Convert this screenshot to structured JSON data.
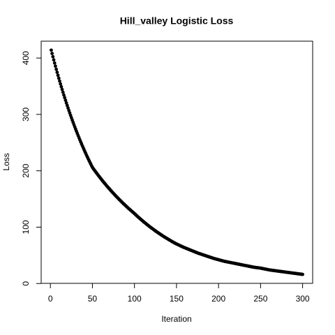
{
  "chart_data": {
    "type": "scatter",
    "title": "Hill_valley Logistic Loss",
    "x_label": "Iteration",
    "y_label": "Loss",
    "color": "#000000",
    "x": [
      1,
      2,
      3,
      4,
      5,
      6,
      7,
      8,
      9,
      10,
      11,
      12,
      13,
      14,
      15,
      16,
      17,
      18,
      19,
      20,
      21,
      22,
      23,
      24,
      25,
      26,
      27,
      28,
      29,
      30,
      31,
      32,
      33,
      34,
      35,
      36,
      37,
      38,
      39,
      40,
      41,
      42,
      43,
      44,
      45,
      46,
      47,
      48,
      49,
      50,
      51,
      52,
      53,
      54,
      55,
      56,
      57,
      58,
      59,
      60,
      61,
      62,
      63,
      64,
      65,
      66,
      67,
      68,
      69,
      70,
      71,
      72,
      73,
      74,
      75,
      76,
      77,
      78,
      79,
      80,
      81,
      82,
      83,
      84,
      85,
      86,
      87,
      88,
      89,
      90,
      91,
      92,
      93,
      94,
      95,
      96,
      97,
      98,
      99,
      100,
      101,
      102,
      103,
      104,
      105,
      106,
      107,
      108,
      109,
      110,
      111,
      112,
      113,
      114,
      115,
      116,
      117,
      118,
      119,
      120,
      121,
      122,
      123,
      124,
      125,
      126,
      127,
      128,
      129,
      130,
      131,
      132,
      133,
      134,
      135,
      136,
      137,
      138,
      139,
      140,
      141,
      142,
      143,
      144,
      145,
      146,
      147,
      148,
      149,
      150,
      151,
      152,
      153,
      154,
      155,
      156,
      157,
      158,
      159,
      160,
      161,
      162,
      163,
      164,
      165,
      166,
      167,
      168,
      169,
      170,
      171,
      172,
      173,
      174,
      175,
      176,
      177,
      178,
      179,
      180,
      181,
      182,
      183,
      184,
      185,
      186,
      187,
      188,
      189,
      190,
      191,
      192,
      193,
      194,
      195,
      196,
      197,
      198,
      199,
      200,
      201,
      202,
      203,
      204,
      205,
      206,
      207,
      208,
      209,
      210,
      211,
      212,
      213,
      214,
      215,
      216,
      217,
      218,
      219,
      220,
      221,
      222,
      223,
      224,
      225,
      226,
      227,
      228,
      229,
      230,
      231,
      232,
      233,
      234,
      235,
      236,
      237,
      238,
      239,
      240,
      241,
      242,
      243,
      244,
      245,
      246,
      247,
      248,
      249,
      250,
      251,
      252,
      253,
      254,
      255,
      256,
      257,
      258,
      259,
      260,
      261,
      262,
      263,
      264,
      265,
      266,
      267,
      268,
      269,
      270,
      271,
      272,
      273,
      274,
      275,
      276,
      277,
      278,
      279,
      280,
      281,
      282,
      283,
      284,
      285,
      286,
      287,
      288,
      289,
      290,
      291,
      292,
      293,
      294,
      295,
      296,
      297,
      298,
      299,
      300
    ],
    "values": [
      414.0,
      408.1,
      402.4,
      396.7,
      391.1,
      385.6,
      380.1,
      374.7,
      369.4,
      364.2,
      359.1,
      354.0,
      349.0,
      344.1,
      339.2,
      334.4,
      329.7,
      325.0,
      320.4,
      315.9,
      311.4,
      307.0,
      302.7,
      298.4,
      294.2,
      290.0,
      285.9,
      281.9,
      277.9,
      274.0,
      270.1,
      266.3,
      262.5,
      258.8,
      255.1,
      251.5,
      247.9,
      244.4,
      241.0,
      237.6,
      234.2,
      230.9,
      227.6,
      224.4,
      221.2,
      218.1,
      215.0,
      212.0,
      209.0,
      206.0,
      203.9,
      201.8,
      199.8,
      197.8,
      195.8,
      193.8,
      191.8,
      189.9,
      188.0,
      186.1,
      184.2,
      182.3,
      180.5,
      178.7,
      176.9,
      175.1,
      173.3,
      171.6,
      169.9,
      168.2,
      166.5,
      164.8,
      163.1,
      161.5,
      159.9,
      158.3,
      156.7,
      155.1,
      153.5,
      152.0,
      150.5,
      149.0,
      147.5,
      146.0,
      144.5,
      143.0,
      141.6,
      140.2,
      138.8,
      137.4,
      136.0,
      134.6,
      133.2,
      131.9,
      130.6,
      129.3,
      128.0,
      126.7,
      125.4,
      124.1,
      122.7,
      121.3,
      119.9,
      118.5,
      117.2,
      115.9,
      114.6,
      113.3,
      112.0,
      110.7,
      109.4,
      108.2,
      107.0,
      105.8,
      104.6,
      103.4,
      102.2,
      101.0,
      99.9,
      98.8,
      97.7,
      96.6,
      95.5,
      94.4,
      93.3,
      92.2,
      91.2,
      90.2,
      89.2,
      88.2,
      87.2,
      86.2,
      85.2,
      84.2,
      83.2,
      82.3,
      81.4,
      80.5,
      79.6,
      78.7,
      77.8,
      76.9,
      76.0,
      75.1,
      74.2,
      73.4,
      72.6,
      71.8,
      71.0,
      70.2,
      69.5,
      68.8,
      68.1,
      67.4,
      66.7,
      66.0,
      65.3,
      64.6,
      63.9,
      63.3,
      62.7,
      62.1,
      61.5,
      60.9,
      60.3,
      59.7,
      59.1,
      58.5,
      57.9,
      57.3,
      56.7,
      56.1,
      55.5,
      54.9,
      54.3,
      53.7,
      53.2,
      52.7,
      52.2,
      51.7,
      51.2,
      50.7,
      50.2,
      49.7,
      49.2,
      48.7,
      48.2,
      47.7,
      47.2,
      46.7,
      46.2,
      45.7,
      45.2,
      44.7,
      44.2,
      43.8,
      43.4,
      43.0,
      42.6,
      42.2,
      41.8,
      41.4,
      41.0,
      40.6,
      40.2,
      39.8,
      39.4,
      39.1,
      38.8,
      38.5,
      38.2,
      37.9,
      37.6,
      37.3,
      37.0,
      36.7,
      36.4,
      36.1,
      35.8,
      35.5,
      35.2,
      34.9,
      34.6,
      34.3,
      34.0,
      33.7,
      33.4,
      33.1,
      32.8,
      32.5,
      32.2,
      31.9,
      31.6,
      31.3,
      31.0,
      30.7,
      30.4,
      30.1,
      29.8,
      29.5,
      29.2,
      28.9,
      28.7,
      28.5,
      28.3,
      28.1,
      27.9,
      27.7,
      27.5,
      27.3,
      27.0,
      26.7,
      26.4,
      26.1,
      25.8,
      25.5,
      25.2,
      24.9,
      24.6,
      24.3,
      24.0,
      23.8,
      23.6,
      23.4,
      23.2,
      23.0,
      22.8,
      22.6,
      22.4,
      22.2,
      22.0,
      21.8,
      21.6,
      21.4,
      21.2,
      21.0,
      20.8,
      20.6,
      20.4,
      20.2,
      20.0,
      19.8,
      19.6,
      19.4,
      19.2,
      19.0,
      18.8,
      18.6,
      18.4,
      18.2,
      18.0,
      17.8,
      17.6,
      17.4,
      17.2,
      17.0,
      16.8,
      16.6,
      16.4,
      16.2
    ],
    "xlim": [
      -10.96,
      311.96
    ],
    "xticks": [
      0,
      50,
      100,
      150,
      200,
      250,
      300
    ],
    "ylim": [
      0.3,
      429.9
    ],
    "yticks": [
      0,
      100,
      200,
      300,
      400
    ]
  }
}
